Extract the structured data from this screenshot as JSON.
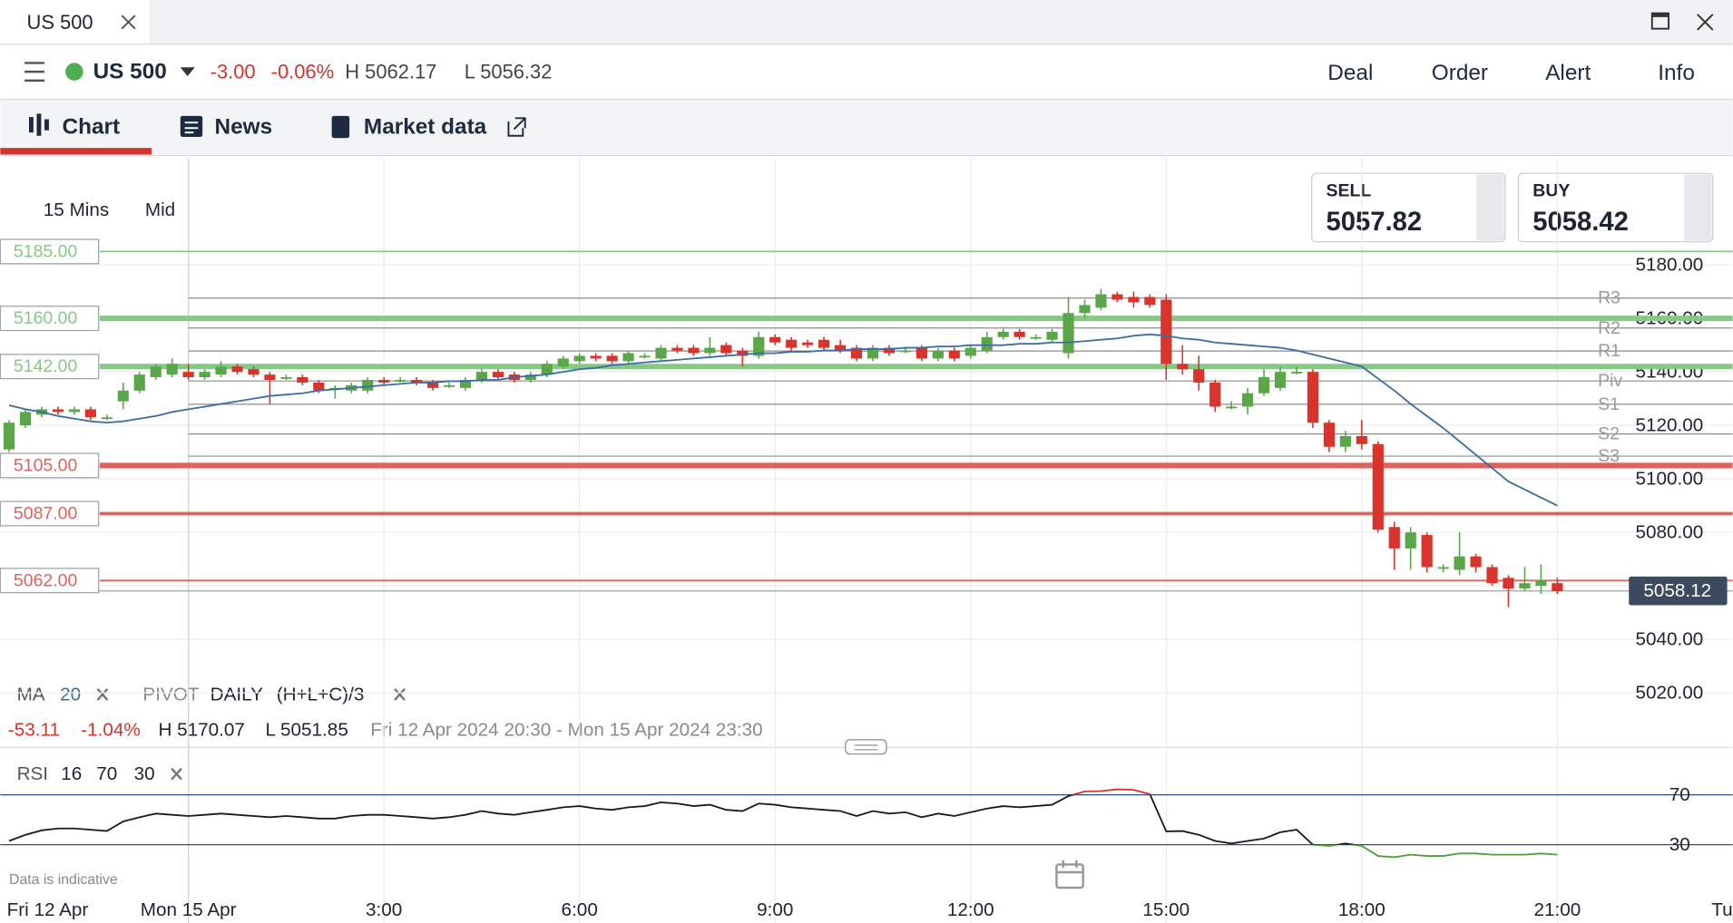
{
  "tab": {
    "title": "US 500"
  },
  "instrument": {
    "name": "US 500",
    "change": "-3.00",
    "change_pct": "-0.06%",
    "high": "H 5062.17",
    "low": "L 5056.32"
  },
  "actions": [
    "Deal",
    "Order",
    "Alert",
    "Info"
  ],
  "tabs": [
    "Chart",
    "News",
    "Market data"
  ],
  "chart_settings": {
    "interval": "15 Mins",
    "price": "Mid"
  },
  "quote": {
    "sell_label": "SELL",
    "sell": "5057.82",
    "buy_label": "BUY",
    "buy": "5058.42"
  },
  "footnote": "Data is indicative",
  "chart_data": {
    "type": "candlestick",
    "categories": [
      "Fri 12 Apr",
      null,
      null,
      null,
      null,
      null,
      null,
      null,
      null,
      null,
      null,
      "Mon 15 Apr",
      null,
      null,
      null,
      null,
      null,
      null,
      null,
      null,
      null,
      null,
      null,
      "3:00",
      null,
      null,
      null,
      null,
      null,
      null,
      null,
      null,
      null,
      null,
      null,
      "6:00",
      null,
      null,
      null,
      null,
      null,
      null,
      null,
      null,
      null,
      null,
      null,
      "9:00",
      null,
      null,
      null,
      null,
      null,
      null,
      null,
      null,
      null,
      null,
      null,
      "12:00",
      null,
      null,
      null,
      null,
      null,
      null,
      null,
      null,
      null,
      null,
      null,
      "15:00",
      null,
      null,
      null,
      null,
      null,
      null,
      null,
      null,
      null,
      null,
      null,
      "18:00",
      null,
      null,
      null,
      null,
      null,
      null,
      null,
      null,
      null,
      null,
      null,
      "21:00",
      null,
      null,
      null,
      null,
      null,
      null,
      null,
      null,
      null,
      null,
      null,
      "Tu"
    ],
    "open": [
      5111,
      5120,
      5124,
      5126,
      5125,
      5126,
      5123,
      5129,
      5133,
      5138,
      5139,
      5140,
      5138,
      5139,
      5142,
      5141,
      5139,
      5138,
      5138,
      5136,
      5134,
      5133,
      5133,
      5137,
      5137,
      5137,
      5136,
      5135,
      5134,
      5137,
      5140,
      5139,
      5137,
      5139,
      5142,
      5144,
      5146,
      5146,
      5144,
      5146,
      5145,
      5149,
      5149,
      5147,
      5150,
      5148,
      5146,
      5153,
      5152,
      5151,
      5152,
      5150,
      5149,
      5145,
      5149,
      5148,
      5149,
      5145,
      5148,
      5146,
      5148,
      5153,
      5155,
      5153,
      5152,
      5147,
      5162,
      5164,
      5169,
      5168,
      5168,
      5167,
      5143,
      5141,
      5136,
      5127,
      5127,
      5132,
      5134,
      5140,
      5140,
      5121,
      5112,
      5116,
      5113,
      5082,
      5074,
      5079,
      5067,
      5066,
      5071,
      5067,
      5063,
      5059,
      5060,
      5061,
      null,
      null,
      null,
      null,
      null,
      null,
      null,
      null,
      null,
      null,
      null,
      null
    ],
    "high": [
      5122,
      5126,
      5127,
      5127,
      5127,
      5127,
      5124,
      5136,
      5140,
      5143,
      5145,
      5143,
      5141,
      5144,
      5143,
      5142,
      5140,
      5139,
      5139,
      5137,
      5135,
      5136,
      5138,
      5138,
      5138,
      5138,
      5137,
      5136,
      5138,
      5141,
      5141,
      5140,
      5140,
      5144,
      5146,
      5147,
      5147,
      5147,
      5148,
      5147,
      5150,
      5150,
      5150,
      5153,
      5151,
      5149,
      5155,
      5154,
      5153,
      5152,
      5153,
      5152,
      5150,
      5150,
      5150,
      5149,
      5150,
      5149,
      5149,
      5150,
      5155,
      5156,
      5156,
      5154,
      5156,
      5168,
      5167,
      5171,
      5170,
      5170,
      5169,
      5169,
      5150,
      5146,
      5137,
      5129,
      5134,
      5141,
      5142,
      5142,
      5141,
      5122,
      5118,
      5122,
      5114,
      5084,
      5082,
      5080,
      5068,
      5080,
      5072,
      5068,
      5064,
      5067,
      5068,
      5063,
      null,
      null,
      null,
      null,
      null,
      null,
      null,
      null,
      null,
      null,
      null,
      null
    ],
    "low": [
      5110,
      5119,
      5123,
      5124,
      5124,
      5122,
      5122,
      5126,
      5132,
      5137,
      5138,
      5137,
      5137,
      5138,
      5139,
      5138,
      5128,
      5137,
      5135,
      5132,
      5130,
      5132,
      5132,
      5135,
      5136,
      5135,
      5133,
      5134,
      5133,
      5136,
      5137,
      5136,
      5136,
      5138,
      5141,
      5143,
      5144,
      5143,
      5143,
      5145,
      5144,
      5147,
      5146,
      5146,
      5146,
      5142,
      5145,
      5150,
      5148,
      5149,
      5148,
      5147,
      5144,
      5144,
      5146,
      5147,
      5144,
      5144,
      5144,
      5145,
      5147,
      5152,
      5152,
      5152,
      5151,
      5145,
      5160,
      5163,
      5166,
      5164,
      5164,
      5137,
      5139,
      5133,
      5125,
      5126,
      5124,
      5131,
      5133,
      5139,
      5119,
      5110,
      5110,
      5111,
      5080,
      5066,
      5066,
      5065,
      5065,
      5064,
      5065,
      5060,
      5052,
      5058,
      5057,
      5057,
      null,
      null,
      null,
      null,
      null,
      null,
      null,
      null,
      null,
      null,
      null,
      null
    ],
    "close": [
      5121,
      5125,
      5126,
      5125,
      5126,
      5123,
      5123,
      5133,
      5139,
      5142,
      5143,
      5138,
      5140,
      5142,
      5140,
      5139,
      5137,
      5138,
      5136,
      5133,
      5134,
      5135,
      5137,
      5136,
      5137,
      5136,
      5134,
      5135,
      5137,
      5140,
      5138,
      5137,
      5139,
      5143,
      5145,
      5146,
      5145,
      5144,
      5147,
      5146,
      5149,
      5148,
      5147,
      5149,
      5147,
      5146,
      5153,
      5151,
      5149,
      5150,
      5149,
      5148,
      5145,
      5149,
      5147,
      5148,
      5145,
      5148,
      5145,
      5149,
      5153,
      5155,
      5153,
      5153,
      5155,
      5162,
      5165,
      5169,
      5167,
      5166,
      5165,
      5143,
      5141,
      5136,
      5127,
      5127,
      5132,
      5138,
      5140,
      5140,
      5121,
      5112,
      5116,
      5113,
      5081,
      5074,
      5080,
      5067,
      5067,
      5071,
      5067,
      5061,
      5059,
      5061,
      5062,
      5058,
      null,
      null,
      null,
      null,
      null,
      null,
      null,
      null,
      null,
      null,
      null,
      null
    ],
    "up_color": "#5aa74a",
    "down_color": "#d8342c",
    "ylim": [
      5000,
      5220
    ],
    "yticks": [
      {
        "value": 5020,
        "label": "5020.00"
      },
      {
        "value": 5040,
        "label": "5040.00"
      },
      {
        "value": 5060,
        "label": "5060.00"
      },
      {
        "value": 5080,
        "label": "5080.00"
      },
      {
        "value": 5100,
        "label": "5100.00"
      },
      {
        "value": 5120,
        "label": "5120.00"
      },
      {
        "value": 5140,
        "label": "5140.00"
      },
      {
        "value": 5160,
        "label": "5160.00"
      },
      {
        "value": 5180,
        "label": "5180.00"
      }
    ],
    "grid": true,
    "ma": {
      "name": "MA",
      "period": 20,
      "color": "#3a6ea5",
      "values": [
        5127.5,
        5126,
        5125,
        5123.5,
        5122.5,
        5121.5,
        5121,
        5121.5,
        5122.5,
        5123.5,
        5125,
        5126,
        5127,
        5128,
        5129,
        5130,
        5131,
        5131.5,
        5132,
        5133,
        5133.5,
        5134,
        5134.5,
        5135,
        5135.5,
        5136,
        5136,
        5136.5,
        5136.5,
        5137,
        5137,
        5138,
        5138.5,
        5139,
        5140,
        5141,
        5141.5,
        5142.5,
        5143,
        5143.5,
        5144,
        5144.5,
        5145,
        5145.5,
        5146,
        5146.5,
        5147,
        5147,
        5147.5,
        5147.5,
        5148,
        5148,
        5148.5,
        5148.5,
        5148.5,
        5149,
        5149,
        5149.5,
        5149.5,
        5150,
        5150,
        5150,
        5150.5,
        5150.5,
        5151,
        5151,
        5151.5,
        5152,
        5152.5,
        5153.5,
        5154,
        5153.5,
        5152.5,
        5152,
        5151,
        5150.5,
        5150,
        5149.5,
        5149,
        5148,
        5146.5,
        5145,
        5143.5,
        5142,
        5137.5,
        5133,
        5128,
        5123.5,
        5119,
        5114,
        5109,
        5104,
        5099,
        5096,
        5093,
        5090,
        null,
        null,
        null,
        null,
        null,
        null,
        null,
        null,
        null,
        null,
        null,
        null
      ]
    },
    "pivot": {
      "name": "PIVOT",
      "period": "DAILY",
      "formula": "(H+L+C)/3",
      "color": "#8c8c8c",
      "levels": [
        {
          "name": "R3",
          "value": 5167.6
        },
        {
          "name": "R2",
          "value": 5156.4
        },
        {
          "name": "R1",
          "value": 5147.8
        },
        {
          "name": "Piv",
          "value": 5136.6
        },
        {
          "name": "S1",
          "value": 5127.9
        },
        {
          "name": "S2",
          "value": 5116.8
        },
        {
          "name": "S3",
          "value": 5108.5
        }
      ]
    },
    "levels": [
      {
        "value": 5185,
        "label": "5185.00",
        "color": "#86c986",
        "weight": "thin"
      },
      {
        "value": 5160,
        "label": "5160.00",
        "color": "#86c986",
        "weight": "thick"
      },
      {
        "value": 5142,
        "label": "5142.00",
        "color": "#86c986",
        "weight": "thick"
      },
      {
        "value": 5105,
        "label": "5105.00",
        "color": "#e0625c",
        "weight": "thick"
      },
      {
        "value": 5087,
        "label": "5087.00",
        "color": "#e0625c",
        "weight": "medium"
      },
      {
        "value": 5062,
        "label": "5062.00",
        "color": "#e0625c",
        "weight": "thin"
      }
    ],
    "last_price": {
      "value": 5058.12,
      "label": "5058.12"
    },
    "stats": {
      "change": "-53.11",
      "change_pct": "-1.04%",
      "high": "H 5170.07",
      "low": "L 5051.85",
      "range": "Fri 12 Apr 2024 20:30 - Mon 15 Apr 2024 23:30"
    },
    "rsi": {
      "name": "RSI",
      "period": 16,
      "overbought": 70,
      "oversold": 30,
      "ylim": [
        0,
        100
      ],
      "yticks": [
        30,
        70
      ],
      "color": "#1a1a1a",
      "overbought_color": "#e0302a",
      "oversold_color": "#4f9e3c",
      "values": [
        33,
        38,
        41.5,
        43,
        43,
        42,
        41,
        48.7,
        52,
        55,
        54,
        53,
        54,
        55,
        54,
        53,
        52,
        53,
        52,
        51,
        51,
        53,
        54,
        54,
        53,
        52,
        51,
        52,
        54,
        57,
        55,
        54,
        56,
        58,
        60,
        61,
        59,
        58,
        60,
        61,
        64,
        63,
        61,
        62,
        58,
        57,
        63,
        62,
        60,
        59,
        58,
        57,
        53,
        57,
        55,
        56,
        52,
        55,
        53,
        56,
        59,
        61,
        60,
        61,
        62,
        69,
        72.7,
        73,
        74.4,
        74,
        70.5,
        40.7,
        41,
        38,
        33,
        31,
        33,
        35,
        40,
        42,
        30,
        29,
        31,
        29,
        21,
        20,
        22,
        21,
        21,
        23,
        23,
        22,
        22,
        22,
        23,
        22,
        null,
        null,
        null,
        null,
        null,
        null,
        null,
        null,
        null,
        null,
        null,
        null
      ]
    }
  }
}
